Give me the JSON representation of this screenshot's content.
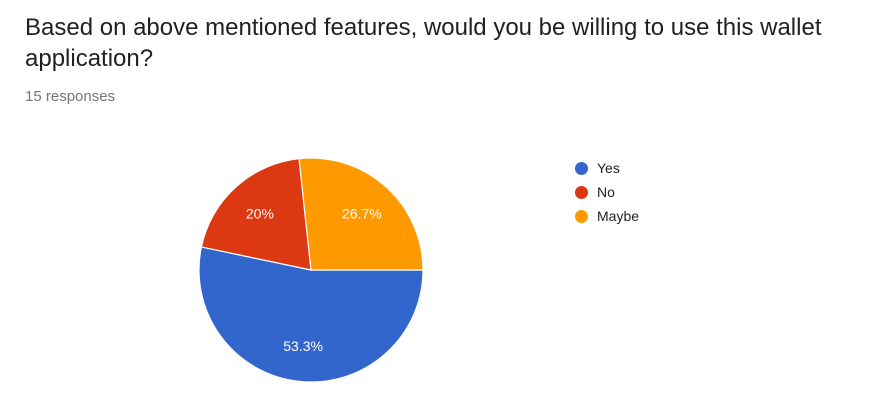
{
  "question": {
    "title": "Based on above mentioned features, would you be willing to use this wallet application?",
    "response_count": "15 responses"
  },
  "chart_data": {
    "type": "pie",
    "categories": [
      "Yes",
      "No",
      "Maybe"
    ],
    "values": [
      53.3,
      20,
      26.7
    ],
    "labels": [
      "53.3%",
      "20%",
      "26.7%"
    ],
    "colors": [
      "#3366cc",
      "#dc3912",
      "#ff9900"
    ],
    "legend_position": "right",
    "start_direction": "counterclockwise from top for No and Maybe; Yes fills the lower half"
  }
}
